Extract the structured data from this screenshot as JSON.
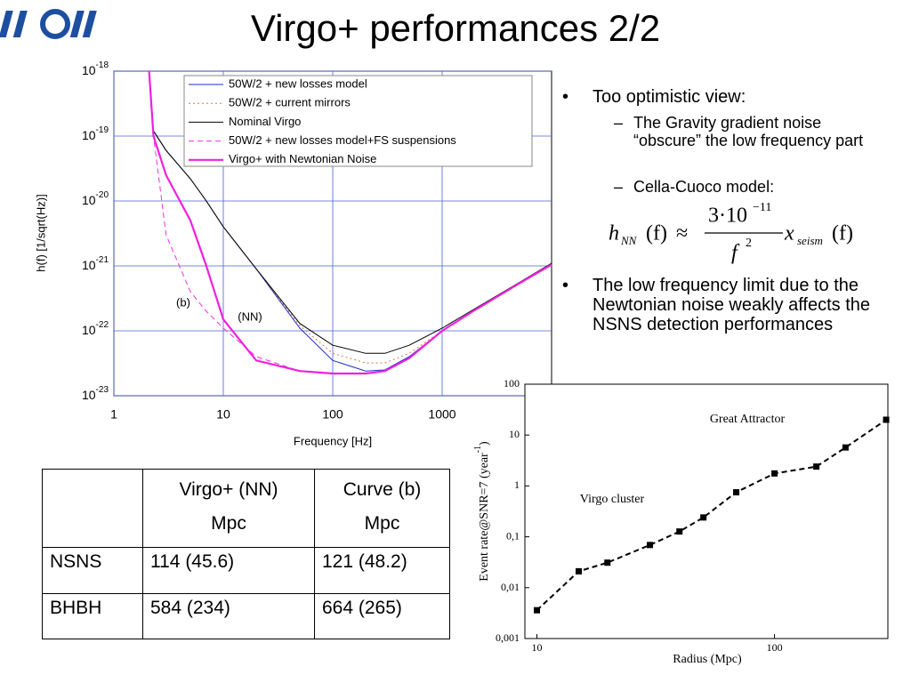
{
  "header": {
    "title": "Virgo+ performances 2/2"
  },
  "chart_data": [
    {
      "type": "line",
      "log_x": true,
      "log_y": true,
      "grid": true,
      "xlabel": "Frequency [Hz]",
      "ylabel": "h(f) [1/sqrt(Hz)]",
      "xlim": [
        1,
        10000
      ],
      "ylim": [
        1e-23,
        1e-18
      ],
      "xticks": [
        1,
        10,
        100,
        1000
      ],
      "yticks": [
        {
          "value": 1e-23,
          "label": "10",
          "exponent": "-23"
        },
        {
          "value": 1e-22,
          "label": "10",
          "exponent": "-22"
        },
        {
          "value": 1e-21,
          "label": "10",
          "exponent": "-21"
        },
        {
          "value": 1e-20,
          "label": "10",
          "exponent": "-20"
        },
        {
          "value": 1e-19,
          "label": "10",
          "exponent": "-19"
        },
        {
          "value": 1e-18,
          "label": "10",
          "exponent": "-18"
        }
      ],
      "legend": "top-right",
      "x": [
        2.1,
        2.3,
        3,
        5,
        7,
        10,
        20,
        50,
        100,
        200,
        300,
        500,
        1000,
        2000,
        5000,
        10000
      ],
      "series": [
        {
          "name": "50W/2 + new losses model",
          "color": "#2030c0",
          "dash": "solid",
          "values": [
            1e-18,
            1.2e-19,
            6e-20,
            2.2e-20,
            1e-20,
            4e-21,
            9e-22,
            1.1e-22,
            3.5e-23,
            2.4e-23,
            2.5e-23,
            4e-23,
            1e-22,
            2.1e-22,
            5.3e-22,
            1.05e-21
          ]
        },
        {
          "name": "50W/2 + current mirrors",
          "color": "#e07050",
          "dash": "dotted",
          "values": [
            1e-18,
            1.2e-19,
            6e-20,
            2.2e-20,
            1e-20,
            4e-21,
            9e-22,
            1.2e-22,
            4.5e-23,
            3.2e-23,
            3.2e-23,
            4.5e-23,
            1e-22,
            2.1e-22,
            5.3e-22,
            1.05e-21
          ]
        },
        {
          "name": "Nominal Virgo",
          "color": "#000000",
          "dash": "solid",
          "values": [
            1e-18,
            1.2e-19,
            6e-20,
            2.2e-20,
            1e-20,
            4e-21,
            9e-22,
            1.3e-22,
            6e-23,
            4.5e-23,
            4.5e-23,
            6e-23,
            1.1e-22,
            2.2e-22,
            5.5e-22,
            1.1e-21
          ]
        },
        {
          "name": "50W/2 + new losses model+FS suspensions",
          "color": "#f030e0",
          "dash": "dashed",
          "values": [
            1e-18,
            1e-19,
            3e-21,
            4e-22,
            2e-22,
            1.1e-22,
            4e-23,
            2.4e-23,
            2.2e-23,
            2.2e-23,
            2.4e-23,
            3.8e-23,
            1e-22,
            2.1e-22,
            5.3e-22,
            1.05e-21
          ]
        },
        {
          "name": "Virgo+ with Newtonian Noise",
          "color": "#f020e0",
          "dash": "solid",
          "values": [
            1e-18,
            1e-19,
            2.5e-20,
            5e-21,
            1e-21,
            1.5e-22,
            3.5e-23,
            2.4e-23,
            2.2e-23,
            2.2e-23,
            2.4e-23,
            3.8e-23,
            1e-22,
            2.1e-22,
            5.3e-22,
            1.05e-21
          ]
        }
      ],
      "annotations": [
        "(b)",
        "(NN)"
      ]
    },
    {
      "type": "line",
      "log_x": true,
      "log_y": true,
      "markers": "square",
      "dash": "dashed",
      "color": "#000000",
      "xlabel": "Radius (Mpc)",
      "ylabel": {
        "text": "Event rate@SNR=7 (year",
        "exponent": "-1",
        "close": ")"
      },
      "xlim": [
        8.9,
        300
      ],
      "ylim": [
        0.001,
        100
      ],
      "xticks": [
        10,
        100
      ],
      "yticks": [
        {
          "value": 0.001,
          "label": "0,001"
        },
        {
          "value": 0.01,
          "label": "0,01"
        },
        {
          "value": 0.1,
          "label": "0,1"
        },
        1,
        10,
        100
      ],
      "x": [
        10,
        15,
        19.8,
        29.9,
        39.8,
        50.2,
        69,
        100,
        150,
        199,
        295
      ],
      "values": [
        0.0036,
        0.021,
        0.031,
        0.069,
        0.127,
        0.24,
        0.75,
        1.76,
        2.4,
        5.7,
        20
      ],
      "annotations": [
        "Great Attractor",
        "Virgo cluster"
      ]
    }
  ],
  "bullets": [
    {
      "text": "Too optimistic view:",
      "sub": [
        "The Gravity gradient noise “obscure” the low frequency part",
        "Cella-Cuoco model:"
      ]
    },
    {
      "text": "The low frequency limit due to the Newtonian noise weakly affects the NSNS detection performances"
    }
  ],
  "formula": {
    "lhs": "h",
    "lhs_sub": "NN",
    "lhs_arg": "(f)",
    "approx": "≈",
    "numerator": "3·10",
    "numerator_exp": "−11",
    "denominator": "f",
    "denominator_exp": "2",
    "rhs": "x",
    "rhs_sub": "seism",
    "rhs_arg": "(f)"
  },
  "table": {
    "columns": [
      {
        "name": "Virgo+ (NN)",
        "unit": "Mpc"
      },
      {
        "name": "Curve (b)",
        "unit": "Mpc"
      }
    ],
    "rows": [
      [
        "NSNS",
        "114 (45.6)",
        "121 (48.2)"
      ],
      [
        "BHBH",
        "584 (234)",
        "664 (265)"
      ]
    ]
  }
}
